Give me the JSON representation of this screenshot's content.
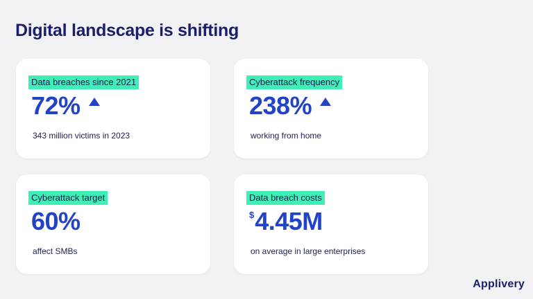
{
  "slide": {
    "title": "Digital landscape is shifting",
    "brand": "Applivery"
  },
  "cards": [
    {
      "label": "Data breaches since 2021",
      "value": "72%",
      "trend": "up-arrow-icon",
      "description": "343 million victims in 2023"
    },
    {
      "label": "Cyberattack frequency",
      "value": "238%",
      "trend": "up-arrow-icon",
      "description": "working from home"
    },
    {
      "label": "Cyberattack target",
      "value": "60%",
      "description": "affect SMBs"
    },
    {
      "label": "Data breach costs",
      "currency": "$",
      "value": "4.45M",
      "description": "on average in large enterprises"
    }
  ],
  "colors": {
    "background": "#f2f2f5",
    "card": "#ffffff",
    "accent_highlight": "#3ff0b6",
    "value_blue": "#2243c8",
    "title_navy": "#1b1f6b"
  }
}
